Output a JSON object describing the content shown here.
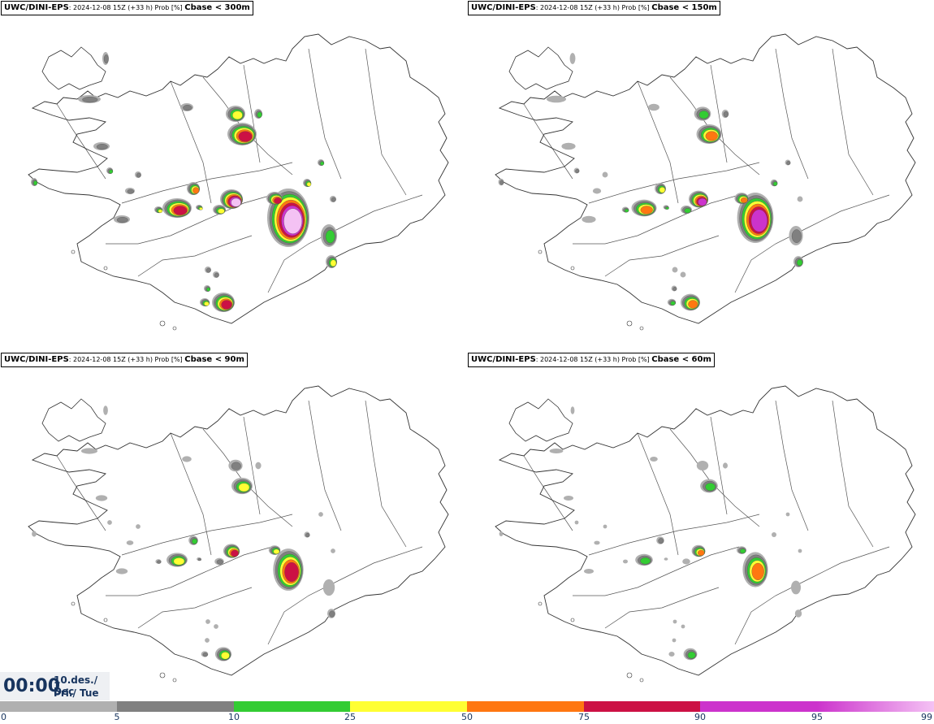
{
  "panels": [
    {
      "model": "UWC/DINI-EPS",
      "info": ": 2024-12-08 15Z (+33 h) Prob [%] ",
      "variable": "Cbase < 300m",
      "level": 4
    },
    {
      "model": "UWC/DINI-EPS",
      "info": ": 2024-12-08 15Z (+33 h) Prob [%] ",
      "variable": "Cbase < 150m",
      "level": 3
    },
    {
      "model": "UWC/DINI-EPS",
      "info": ": 2024-12-08 15Z (+33 h) Prob [%] ",
      "variable": "Cbase < 90m",
      "level": 2
    },
    {
      "model": "UWC/DINI-EPS",
      "info": ": 2024-12-08 15Z (+33 h) Prob [%] ",
      "variable": "Cbase < 60m",
      "level": 1
    }
  ],
  "valid_time": {
    "time": "00:00",
    "date_line": "10.des./ Dec",
    "day_line": "Þri./ Tue"
  },
  "colorbar": {
    "ticks": [
      "0",
      "5",
      "10",
      "25",
      "50",
      "75",
      "90",
      "95",
      "99"
    ],
    "colors": [
      "#ffffff",
      "#b0b0b0",
      "#808080",
      "#33cc33",
      "#ffff33",
      "#ff7711",
      "#cc1144",
      "#cc33cc",
      "#f4c2f4"
    ]
  }
}
